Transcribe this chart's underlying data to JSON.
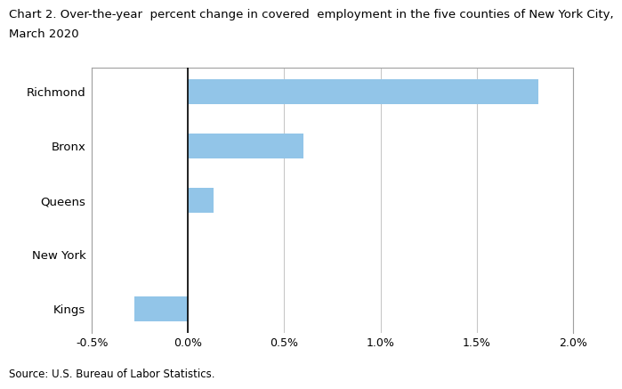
{
  "title_line1": "Chart 2. Over-the-year  percent change in covered  employment in the five counties of New York City,",
  "title_line2": "March 2020",
  "categories": [
    "Kings",
    "New York",
    "Queens",
    "Bronx",
    "Richmond"
  ],
  "values": [
    -0.28,
    0.0,
    0.13,
    0.6,
    1.82
  ],
  "bar_color": "#92C5E8",
  "xlim": [
    -0.5,
    2.0
  ],
  "xticks": [
    -0.5,
    0.0,
    0.5,
    1.0,
    1.5,
    2.0
  ],
  "xtick_labels": [
    "-0.5%",
    "0.0%",
    "0.5%",
    "1.0%",
    "1.5%",
    "2.0%"
  ],
  "source_text": "Source: U.S. Bureau of Labor Statistics.",
  "background_color": "#ffffff",
  "grid_color": "#c8c8c8",
  "bar_height": 0.45,
  "title_fontsize": 9.5,
  "tick_fontsize": 9,
  "label_fontsize": 9.5,
  "source_fontsize": 8.5,
  "border_color": "#a0a0a0"
}
